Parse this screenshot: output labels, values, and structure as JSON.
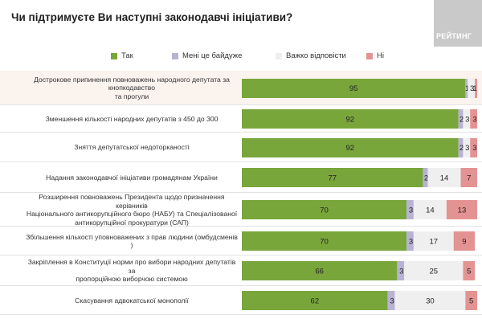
{
  "title": "Чи підтримуєте Ви наступні законодавчі ініціативи?",
  "logo_text": "РЕЙТИНГ",
  "colors": {
    "yes": "#79a63b",
    "indifferent": "#b9b2d4",
    "hard_to_say": "#efefef",
    "no": "#e49393",
    "highlight_row": "#fbf3ee"
  },
  "chart_data": {
    "type": "bar",
    "stacked": true,
    "orientation": "horizontal",
    "title": "Чи підтримуєте Ви наступні законодавчі ініціативи?",
    "legend_position": "top",
    "categories": [
      "Дострокове припинення повноважень народного депутата за кнопкодавство та прогули",
      "Зменшення кількості народних депутатів з 450 до 300",
      "Зняття депутатської недоторканості",
      "Надання законодавчої ініціативи громадянам України",
      "Розширення повноважень Президента щодо призначення керівників Національного антикорупційного бюро (НАБУ) та Спеціалізованої антикорупційної прокуратури (САП)",
      "Збільшення кількості уповноважених з прав людини (омбудсменів )",
      "Закріплення в Конституції норми про вибори народних депутатів за пропорційною виборчою системою",
      "Скасування адвокатської монополії"
    ],
    "category_lines": [
      [
        "Дострокове припинення повноважень народного депутата за кнопкодавство",
        "та прогули"
      ],
      [
        "Зменшення кількості народних депутатів  з 450 до 300"
      ],
      [
        "Зняття депутатської недоторканості"
      ],
      [
        "Надання законодавчої ініціативи громадянам України"
      ],
      [
        "Розширення повноважень Президента щодо призначення керівників",
        "Національного антикорупційного бюро (НАБУ) та Спеціалізованої",
        "антикорупційної прокуратури (САП)"
      ],
      [
        "Збільшення кількості уповноважених з прав людини (омбудсменів )"
      ],
      [
        "Закріплення в Конституції норми про вибори народних депутатів за",
        "пропорційною виборчою системою"
      ],
      [
        "Скасування адвокатської монополії"
      ]
    ],
    "series": [
      {
        "name": "Так",
        "values": [
          95,
          92,
          92,
          77,
          70,
          70,
          66,
          62
        ]
      },
      {
        "name": "Мені це байдуже",
        "values": [
          1,
          2,
          2,
          2,
          3,
          3,
          3,
          3
        ]
      },
      {
        "name": "Важко відповісти",
        "values": [
          3,
          3,
          3,
          14,
          14,
          17,
          25,
          30
        ]
      },
      {
        "name": "Ні",
        "values": [
          1,
          3,
          3,
          7,
          13,
          9,
          5,
          5
        ]
      }
    ],
    "xlim": [
      0,
      100
    ],
    "highlighted_rows": [
      0
    ]
  }
}
